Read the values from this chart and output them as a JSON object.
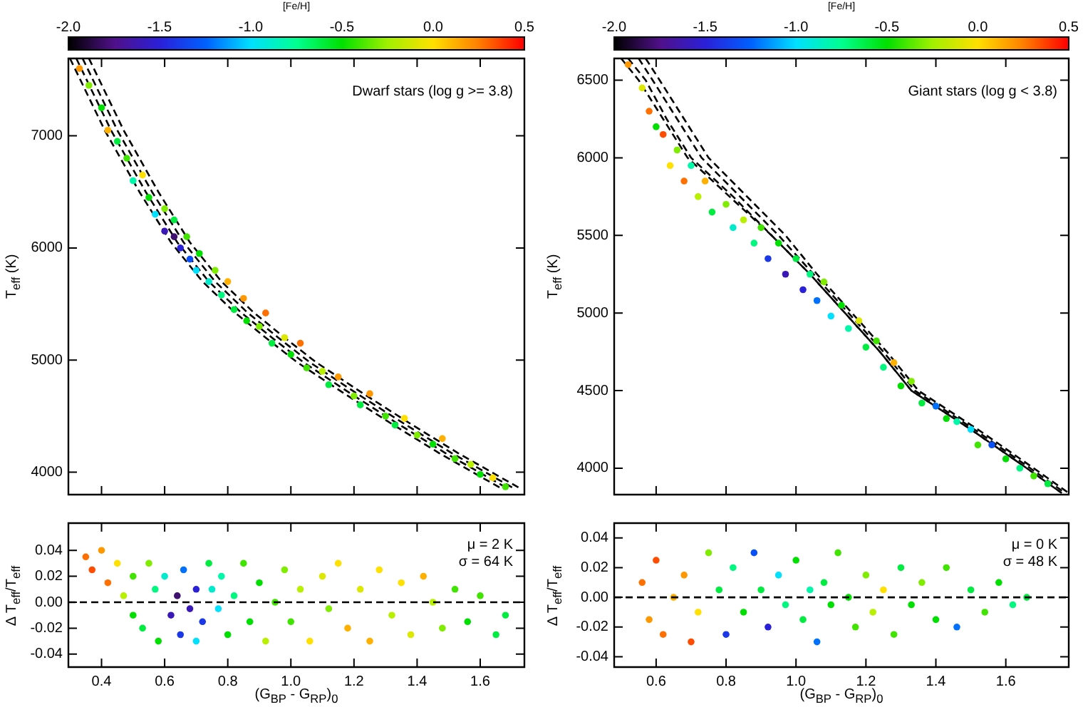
{
  "chart_data": [
    {
      "type": "scatter",
      "ylabel": "T$_{eff}$ (K)",
      "tick_labels": "y",
      "clabel": "[Fe/H]",
      "clim": [
        -2,
        0.5
      ],
      "cticks": [
        {
          "value": -2,
          "label": "-2.0"
        },
        {
          "value": -1.5,
          "label": "-1.5"
        },
        {
          "value": -1,
          "label": "-1.0"
        },
        {
          "value": -0.5,
          "label": "-0.5"
        },
        {
          "value": 0,
          "label": "0.0"
        },
        {
          "value": 0.5,
          "label": "0.5"
        }
      ],
      "xlim": [
        0.295,
        1.74
      ],
      "xticks": [
        0.4,
        0.6,
        0.8,
        1,
        1.2,
        1.4,
        1.6
      ],
      "ylim": [
        3800,
        7690
      ],
      "yticks": [
        4000,
        5000,
        6000,
        7000
      ],
      "annotations": [
        "Dwarf stars (log g >= 3.8)"
      ],
      "series": [
        {
          "marker": "circle",
          "x": [
            0.33,
            0.36,
            0.4,
            0.42,
            0.45,
            0.48,
            0.5,
            0.53,
            0.55,
            0.57,
            0.6,
            0.6,
            0.63,
            0.63,
            0.65,
            0.67,
            0.68,
            0.7,
            0.71,
            0.74,
            0.76,
            0.78,
            0.8,
            0.82,
            0.85,
            0.86,
            0.9,
            0.92,
            0.94,
            0.98,
            1.0,
            1.03,
            1.05,
            1.1,
            1.12,
            1.15,
            1.2,
            1.22,
            1.25,
            1.3,
            1.33,
            1.36,
            1.4,
            1.45,
            1.48,
            1.52,
            1.57,
            1.6,
            1.64,
            1.68
          ],
          "values": [
            7600,
            7450,
            7250,
            7050,
            6950,
            6800,
            6600,
            6650,
            6450,
            6300,
            6350,
            6150,
            6100,
            6250,
            6000,
            6100,
            5900,
            5800,
            5950,
            5700,
            5800,
            5580,
            5700,
            5450,
            5550,
            5350,
            5300,
            5420,
            5150,
            5200,
            5050,
            5150,
            4930,
            4900,
            4780,
            4850,
            4680,
            4600,
            4700,
            4500,
            4420,
            4480,
            4330,
            4250,
            4300,
            4120,
            4070,
            3980,
            3950,
            3870
          ],
          "colors": [
            "#ff9800",
            "#80ec00",
            "#00e000",
            "#ffb000",
            "#00ec40",
            "#40e400",
            "#00f8a8",
            "#ffe000",
            "#00e000",
            "#00e0ff",
            "#80ec00",
            "#3a18b8",
            "#401070",
            "#00ec40",
            "#2a20d8",
            "#40e400",
            "#0a50f8",
            "#00e0ff",
            "#00e000",
            "#00eacc",
            "#80ec00",
            "#00f880",
            "#ffb000",
            "#00ec40",
            "#ff9800",
            "#00e000",
            "#80ec00",
            "#ff7000",
            "#00ec40",
            "#dce800",
            "#00e000",
            "#ff7000",
            "#40e400",
            "#b8f000",
            "#00ec40",
            "#ff9800",
            "#80ec00",
            "#00ec40",
            "#ff9800",
            "#40e400",
            "#00ec40",
            "#ffe000",
            "#80ec00",
            "#00e000",
            "#ffb000",
            "#40e400",
            "#b8f000",
            "#00e000",
            "#ffe000",
            "#40e400"
          ]
        },
        {
          "type": "line",
          "color": "#000000",
          "line_style": "dashed",
          "x": [
            0.3,
            0.41,
            0.52,
            0.62,
            0.72,
            0.82,
            0.92,
            1.02,
            1.17,
            1.32,
            1.47,
            1.57,
            1.67
          ],
          "values": [
            7690,
            7050,
            6500,
            6050,
            5700,
            5430,
            5200,
            4980,
            4700,
            4430,
            4170,
            4010,
            3850
          ]
        },
        {
          "type": "line",
          "color": "#000000",
          "line_style": "dashed",
          "x": [
            0.32,
            0.43,
            0.54,
            0.64,
            0.74,
            0.84,
            0.94,
            1.04,
            1.19,
            1.34,
            1.49,
            1.59,
            1.69
          ],
          "values": [
            7690,
            7050,
            6500,
            6050,
            5700,
            5430,
            5200,
            4980,
            4700,
            4430,
            4170,
            4010,
            3850
          ]
        },
        {
          "type": "line",
          "color": "#000000",
          "line_style": "dashed",
          "x": [
            0.34,
            0.45,
            0.56,
            0.66,
            0.76,
            0.86,
            0.96,
            1.06,
            1.21,
            1.36,
            1.51,
            1.61,
            1.71
          ],
          "values": [
            7690,
            7050,
            6500,
            6050,
            5700,
            5430,
            5200,
            4980,
            4700,
            4430,
            4170,
            4010,
            3850
          ]
        },
        {
          "type": "line",
          "color": "#000000",
          "line_style": "dashed",
          "x": [
            0.36,
            0.47,
            0.58,
            0.68,
            0.78,
            0.88,
            0.98,
            1.08,
            1.23,
            1.38,
            1.53,
            1.63,
            1.73
          ],
          "values": [
            7690,
            7050,
            6500,
            6050,
            5700,
            5430,
            5200,
            4980,
            4700,
            4430,
            4170,
            4010,
            3850
          ]
        }
      ]
    },
    {
      "type": "scatter",
      "ylabel": "T$_{eff}$ (K)",
      "tick_labels": "y",
      "clabel": "[Fe/H]",
      "clim": [
        -2,
        0.5
      ],
      "cticks": [
        {
          "value": -2,
          "label": "-2.0"
        },
        {
          "value": -1.5,
          "label": "-1.5"
        },
        {
          "value": -1,
          "label": "-1.0"
        },
        {
          "value": -0.5,
          "label": "-0.5"
        },
        {
          "value": 0,
          "label": "0.0"
        },
        {
          "value": 0.5,
          "label": "0.5"
        }
      ],
      "xlim": [
        0.48,
        1.78
      ],
      "xticks": [
        0.6,
        0.8,
        1,
        1.2,
        1.4,
        1.6
      ],
      "ylim": [
        3830,
        6640
      ],
      "yticks": [
        4000,
        4500,
        5000,
        5500,
        6000,
        6500
      ],
      "annotations": [
        "Giant stars (log g < 3.8)"
      ],
      "series": [
        {
          "marker": "circle",
          "x": [
            0.52,
            0.56,
            0.58,
            0.6,
            0.62,
            0.64,
            0.66,
            0.68,
            0.7,
            0.72,
            0.74,
            0.76,
            0.8,
            0.82,
            0.85,
            0.88,
            0.9,
            0.92,
            0.95,
            0.97,
            1.0,
            1.02,
            1.04,
            1.06,
            1.08,
            1.1,
            1.13,
            1.15,
            1.18,
            1.2,
            1.23,
            1.25,
            1.28,
            1.3,
            1.33,
            1.36,
            1.4,
            1.43,
            1.46,
            1.5,
            1.52,
            1.56,
            1.6,
            1.64,
            1.68,
            1.72
          ],
          "values": [
            6600,
            6450,
            6300,
            6200,
            6150,
            5950,
            6050,
            5850,
            5950,
            5750,
            5850,
            5650,
            5700,
            5550,
            5600,
            5450,
            5550,
            5350,
            5450,
            5250,
            5350,
            5150,
            5250,
            5080,
            5200,
            4980,
            5050,
            4900,
            4950,
            4780,
            4820,
            4650,
            4680,
            4530,
            4560,
            4420,
            4400,
            4320,
            4300,
            4250,
            4150,
            4150,
            4060,
            4000,
            3950,
            3900
          ],
          "colors": [
            "#ff9800",
            "#dce800",
            "#ff7000",
            "#00e000",
            "#ff4c00",
            "#ffe000",
            "#80ec00",
            "#ff7000",
            "#00f8a8",
            "#b8f000",
            "#ffb000",
            "#00ec40",
            "#80ec00",
            "#00eacc",
            "#b8f000",
            "#00f880",
            "#40e400",
            "#1a38e8",
            "#00e000",
            "#3a18b8",
            "#00ec40",
            "#2a20d8",
            "#00f880",
            "#0070ff",
            "#80ec00",
            "#00e0ff",
            "#00e000",
            "#00f8a8",
            "#dce800",
            "#00ec40",
            "#40e400",
            "#00f880",
            "#ffb000",
            "#00e000",
            "#80ec00",
            "#00ec40",
            "#0070ff",
            "#00e000",
            "#00f8a8",
            "#00e0ff",
            "#40e400",
            "#0a50f8",
            "#00e000",
            "#00f880",
            "#40e400",
            "#00ec40"
          ]
        },
        {
          "type": "line",
          "color": "#000000",
          "line_style": "dashed",
          "x": [
            0.5,
            0.55,
            0.62,
            0.69,
            0.81,
            0.93,
            1.04,
            1.14,
            1.24,
            1.33,
            1.5,
            1.66,
            1.76
          ],
          "values": [
            6640,
            6500,
            6250,
            6000,
            5750,
            5500,
            5250,
            5000,
            4750,
            4500,
            4250,
            4000,
            3840
          ]
        },
        {
          "type": "line",
          "color": "#000000",
          "line_style": "dashed",
          "x": [
            0.52,
            0.57,
            0.63,
            0.7,
            0.82,
            0.93,
            1.04,
            1.14,
            1.24,
            1.33,
            1.5,
            1.66,
            1.76
          ],
          "values": [
            6640,
            6500,
            6250,
            6000,
            5750,
            5500,
            5250,
            5000,
            4750,
            4500,
            4250,
            4000,
            3840
          ]
        },
        {
          "type": "line",
          "color": "#000000",
          "line_style": "dashed",
          "x": [
            0.55,
            0.59,
            0.66,
            0.73,
            0.84,
            0.95,
            1.05,
            1.15,
            1.25,
            1.34,
            1.51,
            1.67,
            1.77
          ],
          "values": [
            6640,
            6500,
            6250,
            6000,
            5750,
            5500,
            5250,
            5000,
            4750,
            4500,
            4250,
            4000,
            3840
          ]
        },
        {
          "type": "line",
          "color": "#000000",
          "line_style": "dashed",
          "x": [
            0.57,
            0.61,
            0.68,
            0.75,
            0.86,
            0.97,
            1.06,
            1.16,
            1.26,
            1.35,
            1.52,
            1.68,
            1.78
          ],
          "values": [
            6640,
            6500,
            6250,
            6000,
            5750,
            5500,
            5250,
            5000,
            4750,
            4500,
            4250,
            4000,
            3840
          ]
        }
      ]
    },
    {
      "type": "scatter",
      "xlabel": "(G$_{BP}$ - G$_{RP}$)$_{0}$",
      "ylabel": "Δ T$_{eff}$/T$_{eff}$",
      "xlim": [
        0.295,
        1.74
      ],
      "xticks": [
        {
          "value": 0.4,
          "label": "0.4"
        },
        {
          "value": 0.6,
          "label": "0.6"
        },
        {
          "value": 0.8,
          "label": "0.8"
        },
        {
          "value": 1,
          "label": "1.0"
        },
        {
          "value": 1.2,
          "label": "1.2"
        },
        {
          "value": 1.4,
          "label": "1.4"
        },
        {
          "value": 1.6,
          "label": "1.6"
        }
      ],
      "ylim": [
        -0.05,
        0.061
      ],
      "yticks": [
        {
          "value": -0.04,
          "label": "-0.04"
        },
        {
          "value": -0.02,
          "label": "-0.02"
        },
        {
          "value": 0,
          "label": "0.00"
        },
        {
          "value": 0.02,
          "label": "0.02"
        },
        {
          "value": 0.04,
          "label": "0.04"
        }
      ],
      "annotations": [
        "μ = 2 K",
        "σ = 64 K"
      ],
      "ref_lines": [
        {
          "axis": "y",
          "value": 0,
          "color": "#000000",
          "line_style": "dashed"
        }
      ],
      "series": [
        {
          "marker": "circle",
          "x": [
            0.35,
            0.37,
            0.4,
            0.42,
            0.45,
            0.47,
            0.5,
            0.5,
            0.53,
            0.55,
            0.57,
            0.58,
            0.6,
            0.62,
            0.64,
            0.65,
            0.66,
            0.68,
            0.7,
            0.7,
            0.72,
            0.74,
            0.75,
            0.77,
            0.78,
            0.8,
            0.82,
            0.85,
            0.87,
            0.9,
            0.92,
            0.95,
            0.98,
            1.0,
            1.03,
            1.06,
            1.1,
            1.12,
            1.15,
            1.18,
            1.22,
            1.25,
            1.28,
            1.32,
            1.35,
            1.38,
            1.42,
            1.45,
            1.48,
            1.52,
            1.56,
            1.6,
            1.65,
            1.68
          ],
          "values": [
            0.035,
            0.025,
            0.04,
            0.015,
            0.03,
            0.005,
            0.02,
            -0.01,
            -0.02,
            0.03,
            0.01,
            -0.03,
            0.02,
            -0.01,
            0.005,
            -0.025,
            0.025,
            -0.005,
            0.01,
            -0.03,
            -0.015,
            0.03,
            0.01,
            -0.005,
            0.02,
            -0.025,
            0.005,
            0.03,
            -0.015,
            0.015,
            -0.03,
            0.0,
            0.025,
            -0.015,
            0.01,
            -0.03,
            0.02,
            -0.005,
            0.03,
            -0.02,
            0.01,
            -0.03,
            0.025,
            -0.01,
            0.015,
            -0.025,
            0.02,
            0.0,
            -0.02,
            0.01,
            -0.015,
            0.005,
            -0.025,
            -0.01
          ],
          "colors": [
            "#ff7000",
            "#ff4c00",
            "#ff9800",
            "#ff7000",
            "#ffe000",
            "#b8f000",
            "#40e400",
            "#00e000",
            "#00ec40",
            "#80ec00",
            "#00f880",
            "#00e000",
            "#00eacc",
            "#3a18b8",
            "#401070",
            "#1a38e8",
            "#0070ff",
            "#3a18b8",
            "#2a20d8",
            "#00e0ff",
            "#1a38e8",
            "#00ec40",
            "#00eacc",
            "#00e0ff",
            "#00f8a8",
            "#00e000",
            "#00f880",
            "#40e400",
            "#00e000",
            "#00e000",
            "#b8f000",
            "#40e400",
            "#80ec00",
            "#40e400",
            "#b8f000",
            "#ffe000",
            "#dce800",
            "#80ec00",
            "#ffe000",
            "#ffb000",
            "#dce800",
            "#ffb000",
            "#ffe000",
            "#b8f000",
            "#ffe000",
            "#dce800",
            "#ffb000",
            "#b8f000",
            "#80ec00",
            "#40e400",
            "#00e000",
            "#40e400",
            "#00ec40",
            "#00ec40"
          ]
        }
      ]
    },
    {
      "type": "scatter",
      "xlabel": "(G$_{BP}$ - G$_{RP}$)$_{0}$",
      "ylabel": "Δ T$_{eff}$/T$_{eff}$",
      "xlim": [
        0.48,
        1.78
      ],
      "xticks": [
        {
          "value": 0.6,
          "label": "0.6"
        },
        {
          "value": 0.8,
          "label": "0.8"
        },
        {
          "value": 1,
          "label": "1.0"
        },
        {
          "value": 1.2,
          "label": "1.2"
        },
        {
          "value": 1.4,
          "label": "1.4"
        },
        {
          "value": 1.6,
          "label": "1.6"
        }
      ],
      "ylim": [
        -0.047,
        0.05
      ],
      "yticks": [
        {
          "value": -0.04,
          "label": "-0.04"
        },
        {
          "value": -0.02,
          "label": "-0.02"
        },
        {
          "value": 0,
          "label": "0.00"
        },
        {
          "value": 0.02,
          "label": "0.02"
        },
        {
          "value": 0.04,
          "label": "0.04"
        }
      ],
      "annotations": [
        "μ = 0 K",
        "σ = 48 K"
      ],
      "ref_lines": [
        {
          "axis": "y",
          "value": 0,
          "color": "#000000",
          "line_style": "dashed"
        }
      ],
      "series": [
        {
          "marker": "circle",
          "x": [
            0.56,
            0.58,
            0.6,
            0.62,
            0.65,
            0.68,
            0.7,
            0.72,
            0.75,
            0.78,
            0.8,
            0.82,
            0.85,
            0.88,
            0.9,
            0.92,
            0.95,
            0.97,
            1.0,
            1.02,
            1.04,
            1.06,
            1.08,
            1.1,
            1.12,
            1.15,
            1.17,
            1.2,
            1.22,
            1.25,
            1.28,
            1.3,
            1.33,
            1.36,
            1.4,
            1.43,
            1.46,
            1.5,
            1.54,
            1.58,
            1.62,
            1.66
          ],
          "values": [
            0.01,
            -0.015,
            0.025,
            -0.025,
            0.0,
            0.015,
            -0.03,
            -0.01,
            0.03,
            0.005,
            -0.025,
            0.02,
            -0.01,
            0.03,
            0.005,
            -0.02,
            0.015,
            -0.005,
            0.025,
            -0.015,
            0.005,
            -0.03,
            0.01,
            -0.005,
            0.03,
            0.0,
            -0.02,
            0.015,
            -0.01,
            0.005,
            -0.025,
            0.02,
            -0.005,
            0.01,
            -0.015,
            0.02,
            -0.02,
            0.005,
            -0.01,
            0.01,
            -0.005,
            0.0
          ],
          "colors": [
            "#ff7000",
            "#ff9800",
            "#ff4c00",
            "#ff7000",
            "#ffb000",
            "#ff9800",
            "#ff4c00",
            "#ffe000",
            "#80ec00",
            "#00ec40",
            "#1a38e8",
            "#00f880",
            "#00e000",
            "#0a50f8",
            "#00ec40",
            "#2a20d8",
            "#00e0ff",
            "#00f880",
            "#00e000",
            "#00ec40",
            "#00f8a8",
            "#0070ff",
            "#00ec40",
            "#00e000",
            "#40e400",
            "#00e000",
            "#40e400",
            "#80ec00",
            "#b8f000",
            "#ffe000",
            "#40e400",
            "#00ec40",
            "#00e000",
            "#80ec00",
            "#00e000",
            "#40e400",
            "#0070ff",
            "#00ec40",
            "#40e400",
            "#00e000",
            "#00f880",
            "#00ec40"
          ]
        }
      ]
    }
  ]
}
